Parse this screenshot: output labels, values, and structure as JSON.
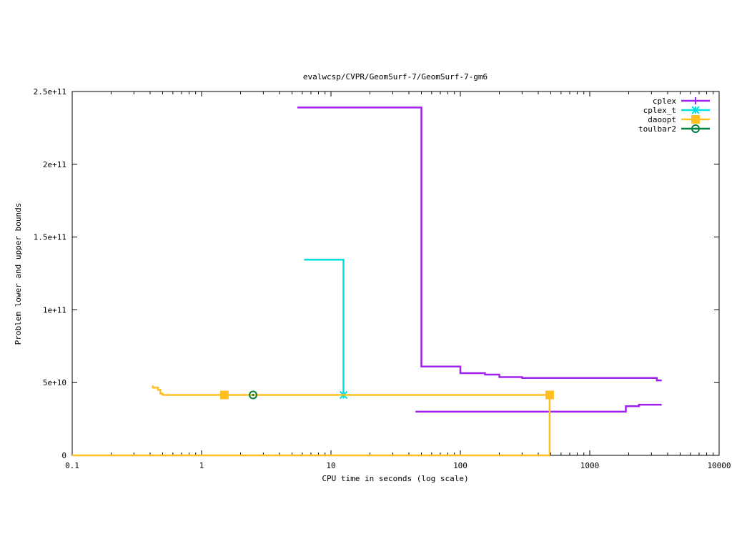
{
  "chart_data": {
    "type": "line",
    "title": "evalwcsp/CVPR/GeomSurf-7/GeomSurf-7-gm6",
    "xlabel": "CPU time in seconds (log scale)",
    "ylabel": "Problem lower and upper bounds",
    "xscale": "log",
    "xlim": [
      0.1,
      10000
    ],
    "ylim": [
      0,
      250000000000
    ],
    "xticks": [
      0.1,
      1,
      10,
      100,
      1000,
      10000
    ],
    "xtick_labels": [
      "0.1",
      "1",
      "10",
      "100",
      "1000",
      "10000"
    ],
    "yticks": [
      0,
      50000000000,
      100000000000,
      150000000000,
      200000000000,
      250000000000
    ],
    "ytick_labels": [
      "0",
      "5e+10",
      "1e+11",
      "1.5e+11",
      "2e+11",
      "2.5e+11"
    ],
    "grid": false,
    "legend_position": "top-right",
    "series": [
      {
        "name": "cplex",
        "color": "#a020f0",
        "marker": "plus",
        "points": [
          [
            5.5,
            239000000000
          ],
          [
            50,
            239000000000
          ],
          [
            50,
            61000000000
          ],
          [
            100,
            61000000000
          ],
          [
            100,
            56500000000
          ],
          [
            155,
            56500000000
          ],
          [
            155,
            55500000000
          ],
          [
            200,
            55500000000
          ],
          [
            200,
            53800000000
          ],
          [
            300,
            53800000000
          ],
          [
            300,
            53200000000
          ],
          [
            3300,
            53200000000
          ],
          [
            3300,
            51500000000
          ],
          [
            3600,
            51500000000
          ]
        ],
        "lower_points": [
          [
            45,
            30000000000
          ],
          [
            1900,
            30000000000
          ],
          [
            1900,
            33800000000
          ],
          [
            2400,
            33800000000
          ],
          [
            2400,
            34800000000
          ],
          [
            3600,
            34800000000
          ]
        ],
        "marker_points": []
      },
      {
        "name": "cplex_t",
        "color": "#00e0e0",
        "marker": "star",
        "points": [
          [
            6.2,
            134500000000
          ],
          [
            12.5,
            134500000000
          ],
          [
            12.5,
            41500000000
          ]
        ],
        "lower_points": [],
        "marker_points": [
          [
            12.5,
            41500000000
          ]
        ]
      },
      {
        "name": "daoopt",
        "color": "#ffc020",
        "marker": "square",
        "points": [
          [
            0.42,
            48000000000
          ],
          [
            0.42,
            46500000000
          ],
          [
            0.46,
            46500000000
          ],
          [
            0.46,
            45000000000
          ],
          [
            0.48,
            45000000000
          ],
          [
            0.48,
            42500000000
          ],
          [
            0.5,
            42500000000
          ],
          [
            0.5,
            41500000000
          ],
          [
            490,
            41500000000
          ],
          [
            490,
            0
          ]
        ],
        "lower_points": [
          [
            0.1,
            0
          ],
          [
            490,
            0
          ]
        ],
        "marker_points": [
          [
            1.5,
            41500000000
          ],
          [
            490,
            41500000000
          ]
        ]
      },
      {
        "name": "toulbar2",
        "color": "#008040",
        "marker": "circle",
        "points": [],
        "lower_points": [],
        "marker_points": [
          [
            2.5,
            41500000000
          ]
        ]
      }
    ]
  }
}
